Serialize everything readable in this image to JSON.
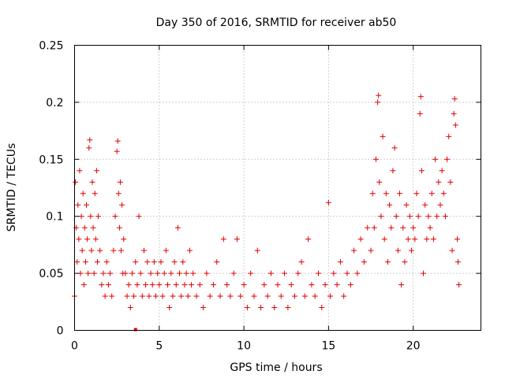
{
  "chart_data": {
    "type": "scatter",
    "title": "Day 350 of 2016, SRMTID for receiver ab50",
    "xlabel": "GPS time / hours",
    "ylabel": "SRMTID / TECUs",
    "xlim": [
      0,
      24
    ],
    "ylim": [
      0,
      0.25
    ],
    "x_ticks": [
      0,
      5,
      10,
      15,
      20
    ],
    "x_tick_labels": [
      "0",
      "5",
      "10",
      "15",
      "20"
    ],
    "y_ticks": [
      0,
      0.05,
      0.1,
      0.15,
      0.2,
      0.25
    ],
    "y_tick_labels": [
      "0",
      "0.05",
      "0.1",
      "0.15",
      "0.2",
      "0.25"
    ],
    "grid": true,
    "marker": "+",
    "color": "#e00000",
    "series": [
      {
        "name": "SRMTID",
        "points": [
          [
            0.0,
            0.03
          ],
          [
            0.05,
            0.13
          ],
          [
            0.1,
            0.09
          ],
          [
            0.15,
            0.06
          ],
          [
            0.2,
            0.11
          ],
          [
            0.25,
            0.08
          ],
          [
            0.3,
            0.14
          ],
          [
            0.35,
            0.05
          ],
          [
            0.4,
            0.1
          ],
          [
            0.45,
            0.07
          ],
          [
            0.5,
            0.12
          ],
          [
            0.55,
            0.04
          ],
          [
            0.6,
            0.09
          ],
          [
            0.65,
            0.06
          ],
          [
            0.7,
            0.11
          ],
          [
            0.75,
            0.08
          ],
          [
            0.8,
            0.05
          ],
          [
            0.85,
            0.16
          ],
          [
            0.9,
            0.167
          ],
          [
            0.95,
            0.1
          ],
          [
            1.0,
            0.07
          ],
          [
            1.05,
            0.13
          ],
          [
            1.1,
            0.09
          ],
          [
            1.15,
            0.05
          ],
          [
            1.2,
            0.12
          ],
          [
            1.25,
            0.08
          ],
          [
            1.3,
            0.14
          ],
          [
            1.35,
            0.06
          ],
          [
            1.4,
            0.1
          ],
          [
            1.5,
            0.07
          ],
          [
            1.6,
            0.04
          ],
          [
            1.7,
            0.05
          ],
          [
            1.8,
            0.03
          ],
          [
            1.9,
            0.06
          ],
          [
            2.0,
            0.04
          ],
          [
            2.1,
            0.05
          ],
          [
            2.2,
            0.03
          ],
          [
            2.3,
            0.07
          ],
          [
            2.4,
            0.1
          ],
          [
            2.5,
            0.157
          ],
          [
            2.55,
            0.166
          ],
          [
            2.6,
            0.12
          ],
          [
            2.65,
            0.09
          ],
          [
            2.7,
            0.13
          ],
          [
            2.75,
            0.07
          ],
          [
            2.8,
            0.11
          ],
          [
            2.85,
            0.05
          ],
          [
            2.9,
            0.08
          ],
          [
            3.0,
            0.05
          ],
          [
            3.1,
            0.03
          ],
          [
            3.2,
            0.04
          ],
          [
            3.3,
            0.02
          ],
          [
            3.4,
            0.05
          ],
          [
            3.5,
            0.03
          ],
          [
            3.6,
            0.06
          ],
          [
            3.7,
            0.04
          ],
          [
            3.8,
            0.1
          ],
          [
            3.9,
            0.05
          ],
          [
            4.0,
            0.03
          ],
          [
            4.1,
            0.07
          ],
          [
            4.2,
            0.04
          ],
          [
            4.3,
            0.06
          ],
          [
            4.4,
            0.03
          ],
          [
            4.5,
            0.05
          ],
          [
            4.6,
            0.04
          ],
          [
            4.7,
            0.06
          ],
          [
            4.8,
            0.03
          ],
          [
            4.9,
            0.05
          ],
          [
            5.0,
            0.04
          ],
          [
            5.1,
            0.06
          ],
          [
            5.2,
            0.03
          ],
          [
            5.3,
            0.05
          ],
          [
            5.4,
            0.07
          ],
          [
            5.5,
            0.04
          ],
          [
            5.6,
            0.02
          ],
          [
            5.7,
            0.05
          ],
          [
            5.8,
            0.03
          ],
          [
            5.9,
            0.06
          ],
          [
            6.0,
            0.04
          ],
          [
            6.1,
            0.09
          ],
          [
            6.2,
            0.05
          ],
          [
            6.3,
            0.03
          ],
          [
            6.4,
            0.06
          ],
          [
            6.5,
            0.04
          ],
          [
            6.6,
            0.05
          ],
          [
            6.7,
            0.03
          ],
          [
            6.8,
            0.07
          ],
          [
            6.9,
            0.04
          ],
          [
            7.0,
            0.05
          ],
          [
            7.2,
            0.03
          ],
          [
            7.4,
            0.04
          ],
          [
            7.6,
            0.02
          ],
          [
            7.8,
            0.05
          ],
          [
            8.0,
            0.03
          ],
          [
            8.2,
            0.04
          ],
          [
            8.4,
            0.06
          ],
          [
            8.6,
            0.03
          ],
          [
            8.8,
            0.08
          ],
          [
            9.0,
            0.04
          ],
          [
            9.2,
            0.03
          ],
          [
            9.4,
            0.05
          ],
          [
            9.6,
            0.08
          ],
          [
            9.8,
            0.03
          ],
          [
            10.0,
            0.04
          ],
          [
            10.2,
            0.02
          ],
          [
            10.4,
            0.05
          ],
          [
            10.6,
            0.03
          ],
          [
            10.8,
            0.07
          ],
          [
            11.0,
            0.02
          ],
          [
            11.2,
            0.04
          ],
          [
            11.4,
            0.03
          ],
          [
            11.6,
            0.05
          ],
          [
            11.8,
            0.02
          ],
          [
            12.0,
            0.04
          ],
          [
            12.2,
            0.03
          ],
          [
            12.4,
            0.05
          ],
          [
            12.6,
            0.02
          ],
          [
            12.8,
            0.04
          ],
          [
            13.0,
            0.03
          ],
          [
            13.2,
            0.05
          ],
          [
            13.4,
            0.06
          ],
          [
            13.6,
            0.03
          ],
          [
            13.8,
            0.08
          ],
          [
            14.0,
            0.04
          ],
          [
            14.2,
            0.03
          ],
          [
            14.4,
            0.05
          ],
          [
            14.6,
            0.02
          ],
          [
            14.8,
            0.04
          ],
          [
            15.0,
            0.112
          ],
          [
            15.1,
            0.03
          ],
          [
            15.3,
            0.05
          ],
          [
            15.5,
            0.04
          ],
          [
            15.7,
            0.06
          ],
          [
            15.9,
            0.03
          ],
          [
            16.1,
            0.05
          ],
          [
            16.3,
            0.04
          ],
          [
            16.5,
            0.07
          ],
          [
            16.7,
            0.05
          ],
          [
            16.9,
            0.08
          ],
          [
            17.1,
            0.06
          ],
          [
            17.3,
            0.09
          ],
          [
            17.5,
            0.07
          ],
          [
            17.6,
            0.12
          ],
          [
            17.7,
            0.09
          ],
          [
            17.8,
            0.15
          ],
          [
            17.9,
            0.2
          ],
          [
            17.95,
            0.206
          ],
          [
            18.0,
            0.13
          ],
          [
            18.1,
            0.1
          ],
          [
            18.2,
            0.17
          ],
          [
            18.3,
            0.08
          ],
          [
            18.4,
            0.12
          ],
          [
            18.5,
            0.06
          ],
          [
            18.6,
            0.11
          ],
          [
            18.7,
            0.09
          ],
          [
            18.8,
            0.14
          ],
          [
            18.9,
            0.16
          ],
          [
            19.0,
            0.1
          ],
          [
            19.1,
            0.07
          ],
          [
            19.2,
            0.12
          ],
          [
            19.3,
            0.04
          ],
          [
            19.4,
            0.09
          ],
          [
            19.5,
            0.06
          ],
          [
            19.6,
            0.11
          ],
          [
            19.7,
            0.08
          ],
          [
            19.8,
            0.1
          ],
          [
            19.9,
            0.07
          ],
          [
            20.0,
            0.09
          ],
          [
            20.1,
            0.08
          ],
          [
            20.2,
            0.12
          ],
          [
            20.3,
            0.1
          ],
          [
            20.4,
            0.19
          ],
          [
            20.45,
            0.205
          ],
          [
            20.5,
            0.14
          ],
          [
            20.6,
            0.05
          ],
          [
            20.7,
            0.11
          ],
          [
            20.8,
            0.08
          ],
          [
            20.9,
            0.1
          ],
          [
            21.0,
            0.09
          ],
          [
            21.1,
            0.12
          ],
          [
            21.2,
            0.08
          ],
          [
            21.3,
            0.15
          ],
          [
            21.4,
            0.1
          ],
          [
            21.5,
            0.13
          ],
          [
            21.6,
            0.11
          ],
          [
            21.7,
            0.14
          ],
          [
            21.8,
            0.12
          ],
          [
            21.9,
            0.1
          ],
          [
            22.0,
            0.15
          ],
          [
            22.1,
            0.17
          ],
          [
            22.2,
            0.13
          ],
          [
            22.3,
            0.07
          ],
          [
            22.4,
            0.19
          ],
          [
            22.45,
            0.203
          ],
          [
            22.5,
            0.18
          ],
          [
            22.6,
            0.08
          ],
          [
            22.65,
            0.06
          ],
          [
            22.7,
            0.04
          ]
        ]
      }
    ],
    "annotations": [
      {
        "type": "x-marker",
        "x": 3.6,
        "note": "small filled square on x-axis"
      }
    ]
  }
}
